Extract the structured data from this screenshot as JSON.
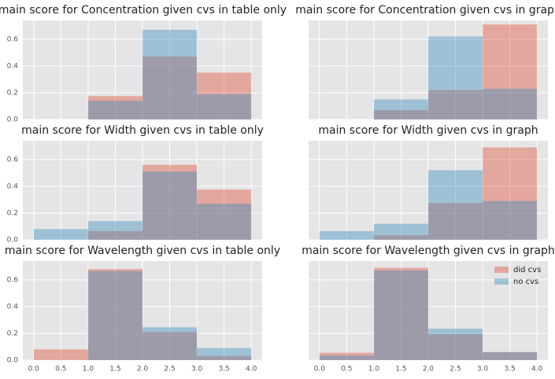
{
  "chart_data": [
    {
      "type": "histogram",
      "title": "main score for Concentration given cvs in table only",
      "bins": [
        0,
        1,
        2,
        3,
        4
      ],
      "series": [
        {
          "name": "did cvs",
          "color": "#e24a33",
          "values": [
            0,
            0.175,
            0.47,
            0.35
          ]
        },
        {
          "name": "no cvs",
          "color": "#348abd",
          "values": [
            0,
            0.14,
            0.67,
            0.19
          ]
        }
      ],
      "xlim": [
        -0.2,
        4.2
      ],
      "xticks": [
        0,
        0.5,
        1,
        1.5,
        2,
        2.5,
        3,
        3.5,
        4
      ],
      "show_xticklabels": false,
      "ylim": [
        0,
        0.74
      ],
      "yticks": [
        {
          "value": 0,
          "label": "0.0"
        },
        0.2,
        0.4,
        0.6
      ],
      "show_yticklabels": true,
      "grid": true
    },
    {
      "type": "histogram",
      "title": "main score for Concentration given cvs in graph",
      "bins": [
        0,
        1,
        2,
        3,
        4
      ],
      "series": [
        {
          "name": "did cvs",
          "color": "#e24a33",
          "values": [
            0,
            0.07,
            0.22,
            0.71
          ]
        },
        {
          "name": "no cvs",
          "color": "#348abd",
          "values": [
            0,
            0.15,
            0.62,
            0.23
          ]
        }
      ],
      "xlim": [
        -0.2,
        4.2
      ],
      "xticks": [
        0,
        0.5,
        1,
        1.5,
        2,
        2.5,
        3,
        3.5,
        4
      ],
      "show_xticklabels": false,
      "ylim": [
        0,
        0.74
      ],
      "yticks": [
        {
          "value": 0,
          "label": "0.0"
        },
        0.2,
        0.4,
        0.6
      ],
      "show_yticklabels": false,
      "grid": true
    },
    {
      "type": "histogram",
      "title": "main score for Width given cvs in table only",
      "bins": [
        0,
        1,
        2,
        3,
        4
      ],
      "series": [
        {
          "name": "did cvs",
          "color": "#e24a33",
          "values": [
            0,
            0.065,
            0.56,
            0.375
          ]
        },
        {
          "name": "no cvs",
          "color": "#348abd",
          "values": [
            0.08,
            0.14,
            0.51,
            0.27
          ]
        }
      ],
      "xlim": [
        -0.2,
        4.2
      ],
      "xticks": [
        0,
        0.5,
        1,
        1.5,
        2,
        2.5,
        3,
        3.5,
        4
      ],
      "show_xticklabels": false,
      "ylim": [
        0,
        0.74
      ],
      "yticks": [
        {
          "value": 0,
          "label": "0.0"
        },
        0.2,
        0.4,
        0.6
      ],
      "show_yticklabels": true,
      "grid": true
    },
    {
      "type": "histogram",
      "title": "main score for Width given cvs in graph",
      "bins": [
        0,
        1,
        2,
        3,
        4
      ],
      "series": [
        {
          "name": "did cvs",
          "color": "#e24a33",
          "values": [
            0,
            0.035,
            0.275,
            0.69
          ]
        },
        {
          "name": "no cvs",
          "color": "#348abd",
          "values": [
            0.065,
            0.12,
            0.52,
            0.29
          ]
        }
      ],
      "xlim": [
        -0.2,
        4.2
      ],
      "xticks": [
        0,
        0.5,
        1,
        1.5,
        2,
        2.5,
        3,
        3.5,
        4
      ],
      "show_xticklabels": false,
      "ylim": [
        0,
        0.74
      ],
      "yticks": [
        {
          "value": 0,
          "label": "0.0"
        },
        0.2,
        0.4,
        0.6
      ],
      "show_yticklabels": false,
      "grid": true
    },
    {
      "type": "histogram",
      "title": "main score for Wavelength given cvs in table only",
      "bins": [
        0,
        1,
        2,
        3,
        4
      ],
      "series": [
        {
          "name": "did cvs",
          "color": "#e24a33",
          "values": [
            0.08,
            0.68,
            0.21,
            0.03
          ]
        },
        {
          "name": "no cvs",
          "color": "#348abd",
          "values": [
            0,
            0.665,
            0.245,
            0.09
          ]
        }
      ],
      "xlim": [
        -0.2,
        4.2
      ],
      "xticks": [
        {
          "value": 0,
          "label": "0.0"
        },
        0.5,
        {
          "value": 1,
          "label": "1.0"
        },
        1.5,
        {
          "value": 2,
          "label": "2.0"
        },
        2.5,
        {
          "value": 3,
          "label": "3.0"
        },
        3.5,
        {
          "value": 4,
          "label": "4.0"
        }
      ],
      "show_xticklabels": true,
      "ylim": [
        0,
        0.74
      ],
      "yticks": [
        {
          "value": 0,
          "label": "0.0"
        },
        0.2,
        0.4,
        0.6
      ],
      "show_yticklabels": true,
      "grid": true
    },
    {
      "type": "histogram",
      "title": "main score for Wavelength given cvs in graph",
      "bins": [
        0,
        1,
        2,
        3,
        4
      ],
      "series": [
        {
          "name": "did cvs",
          "color": "#e24a33",
          "values": [
            0.055,
            0.69,
            0.195,
            0.06
          ]
        },
        {
          "name": "no cvs",
          "color": "#348abd",
          "values": [
            0.035,
            0.67,
            0.235,
            0.06
          ]
        }
      ],
      "xlim": [
        -0.2,
        4.2
      ],
      "xticks": [
        {
          "value": 0,
          "label": "0.0"
        },
        0.5,
        {
          "value": 1,
          "label": "1.0"
        },
        1.5,
        {
          "value": 2,
          "label": "2.0"
        },
        2.5,
        {
          "value": 3,
          "label": "3.0"
        },
        3.5,
        {
          "value": 4,
          "label": "4.0"
        }
      ],
      "show_xticklabels": true,
      "ylim": [
        0,
        0.74
      ],
      "yticks": [
        {
          "value": 0,
          "label": "0.0"
        },
        0.2,
        0.4,
        0.6
      ],
      "show_yticklabels": false,
      "grid": true,
      "legend": "upper right"
    }
  ]
}
